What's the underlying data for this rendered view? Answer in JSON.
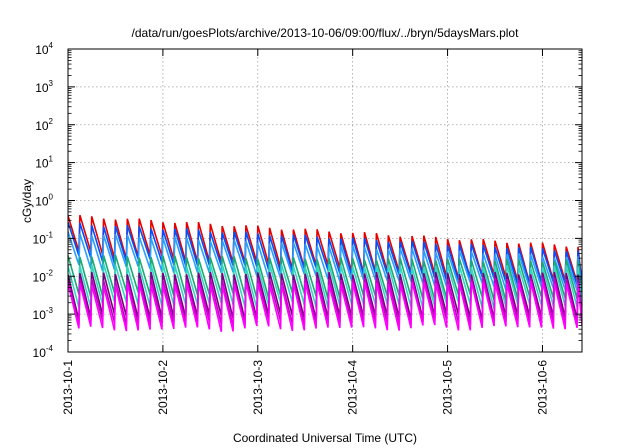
{
  "chart_data": {
    "type": "line",
    "title": "/data/run/goesPlots/archive/2013-10-06/09:00/flux/../bryn/5daysMars.plot",
    "xlabel": "Coordinated Universal Time (UTC)",
    "ylabel": "cGy/day",
    "yscale": "log",
    "ylim": [
      0.0001,
      10000
    ],
    "y_ticks": [
      {
        "base": "10",
        "exp": "-4"
      },
      {
        "base": "10",
        "exp": "-3"
      },
      {
        "base": "10",
        "exp": "-2"
      },
      {
        "base": "10",
        "exp": "-1"
      },
      {
        "base": "10",
        "exp": "0"
      },
      {
        "base": "10",
        "exp": "1"
      },
      {
        "base": "10",
        "exp": "2"
      },
      {
        "base": "10",
        "exp": "3"
      },
      {
        "base": "10",
        "exp": "4"
      }
    ],
    "xlim": [
      "2013-10-01",
      "2013-10-06T10:00"
    ],
    "x_ticks": [
      "2013-10-1",
      "2013-10-2",
      "2013-10-3",
      "2013-10-4",
      "2013-10-5",
      "2013-10-6"
    ],
    "grid": true,
    "sawtooth_period_hours": 3,
    "series": [
      {
        "color": "#e60000",
        "start_peak": 0.4,
        "end_peak": 0.06,
        "trough_ratio": 0.1
      },
      {
        "color": "#0050ff",
        "start_peak": 0.25,
        "end_peak": 0.045,
        "trough_ratio": 0.12
      },
      {
        "color": "#2a9fff",
        "start_peak": 0.14,
        "end_peak": 0.03,
        "trough_ratio": 0.13
      },
      {
        "color": "#1aaa72",
        "start_peak": 0.035,
        "end_peak": 0.025,
        "trough_ratio": 0.1
      },
      {
        "color": "#33d6c0",
        "start_peak": 0.02,
        "end_peak": 0.018,
        "trough_ratio": 0.09
      },
      {
        "color": "#7a0080",
        "start_peak": 0.012,
        "end_peak": 0.012,
        "trough_ratio": 0.07
      },
      {
        "color": "#c400c4",
        "start_peak": 0.008,
        "end_peak": 0.009,
        "trough_ratio": 0.07
      },
      {
        "color": "#ff00ff",
        "start_peak": 0.006,
        "end_peak": 0.007,
        "trough_ratio": 0.065
      }
    ]
  }
}
